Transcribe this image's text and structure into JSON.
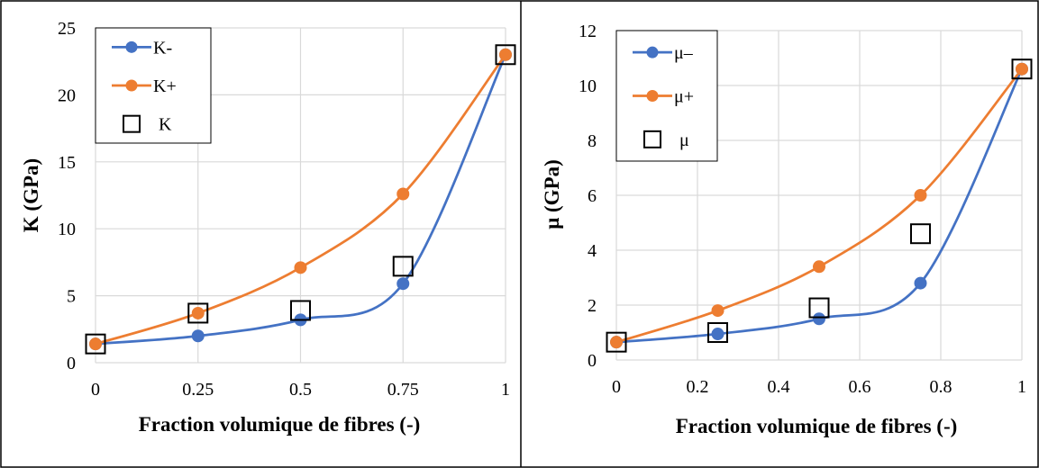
{
  "colors": {
    "lower_bound": "#4472C4",
    "upper_bound": "#ED7D31",
    "measured_marker": "#000000",
    "grid": "#D9D9D9"
  },
  "chart_data": [
    {
      "type": "line",
      "title": "",
      "xlabel": "Fraction volumique de fibres (-)",
      "ylabel": "K (GPa)",
      "xlim": [
        0,
        1
      ],
      "ylim": [
        0,
        25
      ],
      "x_ticks": [
        "0",
        "0.25",
        "0.5",
        "0.75",
        "1"
      ],
      "x_tick_values": [
        0,
        0.25,
        0.5,
        0.75,
        1
      ],
      "y_ticks": [
        "0",
        "5",
        "10",
        "15",
        "20",
        "25"
      ],
      "y_tick_values": [
        0,
        5,
        10,
        15,
        20,
        25
      ],
      "grid": true,
      "legend_position": "top-left",
      "x": [
        0,
        0.25,
        0.5,
        0.75,
        1
      ],
      "series": [
        {
          "name": "K-",
          "style": "smooth-line-circle",
          "color": "#4472C4",
          "values": [
            1.4,
            2.0,
            3.2,
            5.9,
            23.0
          ]
        },
        {
          "name": "K+",
          "style": "smooth-line-circle",
          "color": "#ED7D31",
          "values": [
            1.4,
            3.7,
            7.1,
            12.6,
            23.0
          ]
        },
        {
          "name": "K",
          "style": "open-square",
          "color": "#000000",
          "values": [
            1.4,
            3.7,
            3.9,
            7.2,
            23.0
          ]
        }
      ]
    },
    {
      "type": "line",
      "title": "",
      "xlabel": "Fraction volumique de fibres (-)",
      "ylabel": "μ (GPa)",
      "xlim": [
        0,
        1
      ],
      "ylim": [
        0,
        12
      ],
      "x_ticks": [
        "0",
        "0.2",
        "0.4",
        "0.6",
        "0.8",
        "1"
      ],
      "x_tick_values": [
        0,
        0.2,
        0.4,
        0.6,
        0.8,
        1
      ],
      "y_ticks": [
        "0",
        "2",
        "4",
        "6",
        "8",
        "10",
        "12"
      ],
      "y_tick_values": [
        0,
        2,
        4,
        6,
        8,
        10,
        12
      ],
      "grid": true,
      "legend_position": "top-left",
      "x": [
        0,
        0.25,
        0.5,
        0.75,
        1
      ],
      "series": [
        {
          "name": "μ–",
          "style": "smooth-line-circle",
          "color": "#4472C4",
          "values": [
            0.65,
            0.95,
            1.5,
            2.8,
            10.6
          ]
        },
        {
          "name": "μ+",
          "style": "smooth-line-circle",
          "color": "#ED7D31",
          "values": [
            0.65,
            1.8,
            3.4,
            6.0,
            10.6
          ]
        },
        {
          "name": "μ",
          "style": "open-square",
          "color": "#000000",
          "values": [
            0.65,
            1.0,
            1.9,
            4.6,
            10.6
          ]
        }
      ]
    }
  ]
}
